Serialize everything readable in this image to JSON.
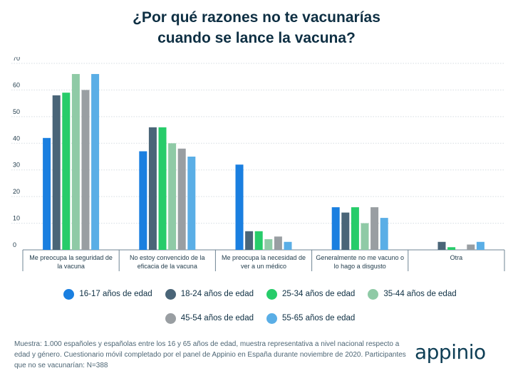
{
  "chart_data": {
    "type": "bar",
    "title_lines": [
      "¿Por qué razones no te vacunarías",
      "cuando se lance la vacuna?"
    ],
    "categories": [
      [
        "Me preocupa la seguridad de",
        "la vacuna"
      ],
      [
        "No estoy convencido de la",
        "eficacia de la vacuna"
      ],
      [
        "Me preocupa la necesidad de",
        "ver a un médico"
      ],
      [
        "Generalmente no me vacuno o",
        "lo hago a disgusto"
      ],
      [
        "Otra"
      ]
    ],
    "y_ticks": [
      "70",
      "60",
      "50",
      "40",
      "30",
      "20",
      "10",
      "0"
    ],
    "ylim": [
      0,
      70
    ],
    "series": [
      {
        "name": "16-17 años de edad",
        "color": "#1a7fe0",
        "values": [
          42,
          37,
          32,
          16,
          0
        ]
      },
      {
        "name": "18-24 años de edad",
        "color": "#4a6578",
        "values": [
          58,
          46,
          7,
          14,
          3
        ]
      },
      {
        "name": "25-34 años de edad",
        "color": "#27cc6a",
        "values": [
          59,
          46,
          7,
          16,
          1
        ]
      },
      {
        "name": "35-44 años de edad",
        "color": "#8fcaa6",
        "values": [
          66,
          40,
          4,
          10,
          0
        ]
      },
      {
        "name": "45-54 años de edad",
        "color": "#999ea2",
        "values": [
          60,
          38,
          5,
          16,
          2
        ]
      },
      {
        "name": "55-65 años de edad",
        "color": "#5aaee6",
        "values": [
          66,
          35,
          3,
          12,
          3
        ]
      }
    ],
    "grid": true,
    "legend_position": "bottom"
  },
  "note": "Muestra: 1.000 españoles y españolas entre los 16 y 65 años de edad, muestra representativa a nivel nacional respecto a edad y género. Cuestionario móvil completado por el panel de Appinio en España durante noviembre de 2020. Participantes que no se vacunarían: N=388",
  "logo_text": "appinio"
}
